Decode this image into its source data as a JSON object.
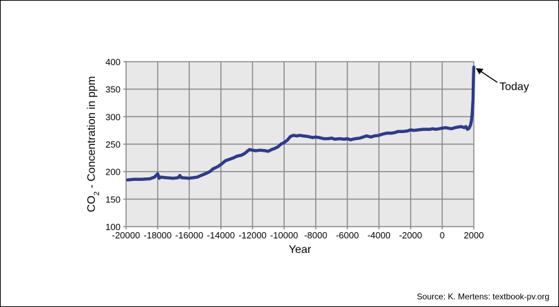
{
  "chart_data": {
    "type": "line",
    "xlabel": "Year",
    "ylabel_main": "CO",
    "ylabel_sub": "2",
    "ylabel_rest": " - Concentration in ppm",
    "xlim": [
      -20000,
      2000
    ],
    "ylim": [
      100,
      400
    ],
    "x_ticks": [
      -20000,
      -18000,
      -16000,
      -14000,
      -12000,
      -10000,
      -8000,
      -6000,
      -4000,
      -2000,
      0,
      2000
    ],
    "y_ticks": [
      100,
      150,
      200,
      250,
      300,
      350,
      400
    ],
    "grid": true,
    "annotation": {
      "text": "Today",
      "x": 2000,
      "y": 390
    },
    "colors": {
      "line": "#2e3a8c",
      "plot_bg": "#e8e8e8",
      "grid": "#888888"
    },
    "series": [
      {
        "x": [
          -19900,
          -19500,
          -19000,
          -18500,
          -18200,
          -18000,
          -17900,
          -17800,
          -17500,
          -17000,
          -16700,
          -16600,
          -16500,
          -16000,
          -15500,
          -15000,
          -14700,
          -14500,
          -14200,
          -14000,
          -13700,
          -13500,
          -13200,
          -13000,
          -12700,
          -12500,
          -12200,
          -12000,
          -11800,
          -11500,
          -11200,
          -11000,
          -10800,
          -10600,
          -10400,
          -10200,
          -10000,
          -9800,
          -9600,
          -9400,
          -9200,
          -9000,
          -8800,
          -8500,
          -8200,
          -8000,
          -7800,
          -7500,
          -7200,
          -7000,
          -6800,
          -6500,
          -6200,
          -6000,
          -5800,
          -5500,
          -5200,
          -5000,
          -4800,
          -4500,
          -4300,
          -4000,
          -3800,
          -3500,
          -3200,
          -3000,
          -2800,
          -2500,
          -2200,
          -2000,
          -1800,
          -1500,
          -1200,
          -1000,
          -800,
          -600,
          -400,
          -200,
          0,
          200,
          400,
          600,
          800,
          1000,
          1200,
          1400,
          1500,
          1600,
          1700,
          1800,
          1850,
          1900,
          1950,
          1980,
          2000
        ],
        "y": [
          185,
          186,
          186,
          187,
          190,
          196,
          188,
          190,
          189,
          188,
          189,
          193,
          189,
          188,
          190,
          196,
          200,
          205,
          209,
          213,
          220,
          222,
          225,
          228,
          230,
          233,
          240,
          239,
          238,
          239,
          238,
          237,
          240,
          242,
          245,
          250,
          253,
          257,
          264,
          266,
          265,
          266,
          265,
          264,
          262,
          263,
          262,
          260,
          260,
          261,
          259,
          260,
          259,
          260,
          258,
          260,
          261,
          263,
          265,
          263,
          265,
          266,
          268,
          270,
          270,
          271,
          273,
          273,
          274,
          276,
          275,
          276,
          277,
          277,
          277,
          278,
          277,
          278,
          279,
          280,
          279,
          278,
          280,
          281,
          282,
          280,
          282,
          277,
          279,
          285,
          293,
          305,
          330,
          370,
          390
        ]
      }
    ]
  },
  "source": "Source: K. Mertens: textbook-pv.org"
}
